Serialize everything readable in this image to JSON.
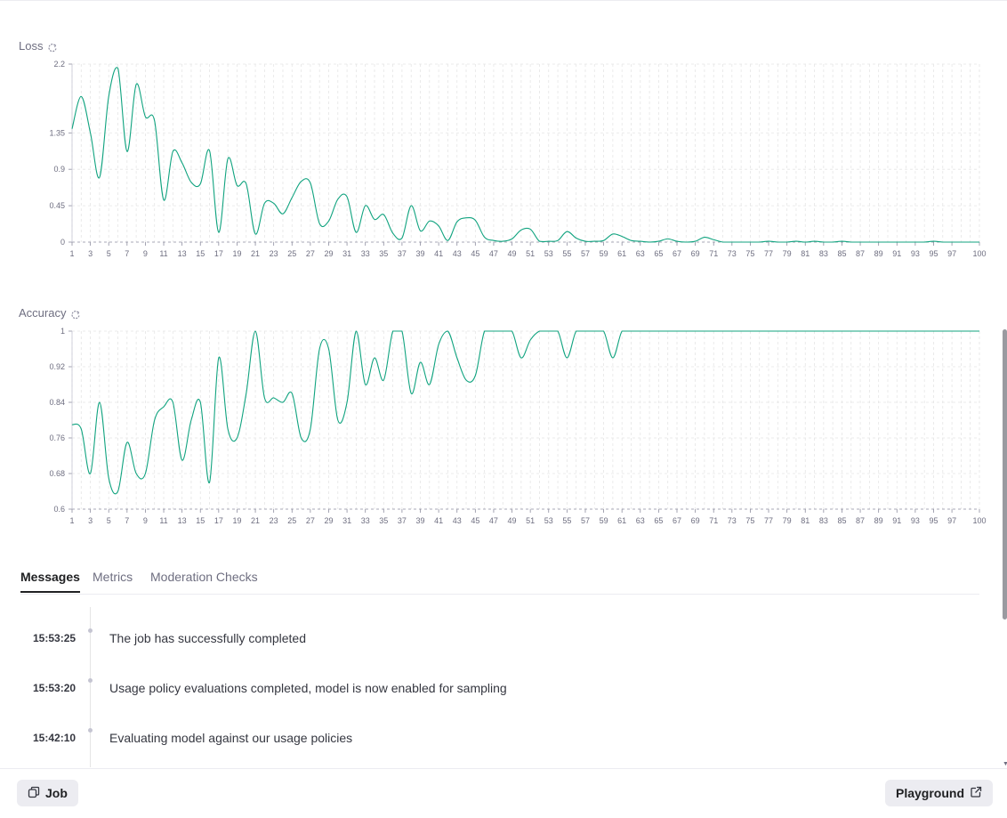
{
  "loss_chart": {
    "title": "Loss",
    "reset_icon": "reset-zoom-icon"
  },
  "accuracy_chart": {
    "title": "Accuracy",
    "reset_icon": "reset-zoom-icon"
  },
  "chart_data": [
    {
      "type": "line",
      "title": "Loss",
      "xlabel": "",
      "ylabel": "",
      "xlim": [
        1,
        100
      ],
      "ylim": [
        0,
        2.2
      ],
      "y_ticks": [
        "0",
        "0.45",
        "0.9",
        "1.35",
        "2.2"
      ],
      "x_ticks": [
        "1",
        "3",
        "5",
        "7",
        "9",
        "11",
        "13",
        "15",
        "17",
        "19",
        "21",
        "23",
        "25",
        "27",
        "29",
        "31",
        "33",
        "35",
        "37",
        "39",
        "41",
        "43",
        "45",
        "47",
        "49",
        "51",
        "53",
        "55",
        "57",
        "59",
        "61",
        "63",
        "65",
        "67",
        "69",
        "71",
        "73",
        "75",
        "77",
        "79",
        "81",
        "83",
        "85",
        "87",
        "89",
        "91",
        "93",
        "95",
        "97",
        "100"
      ],
      "grid": true,
      "color": "#10a37f",
      "series": [
        {
          "x": [
            1,
            2,
            3,
            4,
            5,
            6,
            7,
            8,
            9,
            10,
            11,
            12,
            13,
            14,
            15,
            16,
            17,
            18,
            19,
            20,
            21,
            22,
            23,
            24,
            25,
            26,
            27,
            28,
            29,
            30,
            31,
            32,
            33,
            34,
            35,
            36,
            37,
            38,
            39,
            40,
            41,
            42,
            43,
            44,
            45,
            46,
            47,
            48,
            49,
            50,
            51,
            52,
            53,
            54,
            55,
            56,
            57,
            58,
            59,
            60,
            61,
            62,
            63,
            64,
            65,
            66,
            67,
            68,
            69,
            70,
            71,
            72,
            73,
            74,
            75,
            76,
            77,
            78,
            79,
            80,
            81,
            82,
            83,
            84,
            85,
            86,
            87,
            88,
            89,
            90,
            91,
            92,
            93,
            94,
            95,
            96,
            97,
            98,
            99,
            100
          ],
          "values": [
            1.4,
            1.8,
            1.35,
            0.8,
            1.8,
            2.15,
            1.12,
            1.95,
            1.55,
            1.5,
            0.52,
            1.12,
            0.98,
            0.74,
            0.72,
            1.13,
            0.12,
            1.03,
            0.7,
            0.72,
            0.1,
            0.48,
            0.48,
            0.35,
            0.55,
            0.75,
            0.73,
            0.23,
            0.26,
            0.53,
            0.56,
            0.12,
            0.45,
            0.28,
            0.34,
            0.11,
            0.05,
            0.45,
            0.14,
            0.26,
            0.2,
            0.02,
            0.25,
            0.3,
            0.27,
            0.06,
            0.02,
            0.01,
            0.04,
            0.15,
            0.16,
            0.01,
            0.01,
            0.02,
            0.13,
            0.05,
            0.01,
            0.01,
            0.02,
            0.1,
            0.07,
            0.02,
            0.01,
            0.0,
            0.01,
            0.04,
            0.01,
            0.0,
            0.01,
            0.06,
            0.03,
            0.0,
            0.0,
            0.0,
            0.0,
            0.0,
            0.01,
            0.0,
            0.0,
            0.01,
            0.0,
            0.01,
            0.0,
            0.0,
            0.01,
            0.0,
            0.0,
            0.0,
            0.0,
            0.0,
            0.0,
            0.0,
            0.0,
            0.0,
            0.01,
            0.0,
            0.0,
            0.0,
            0.0,
            0.0
          ]
        }
      ]
    },
    {
      "type": "line",
      "title": "Accuracy",
      "xlabel": "",
      "ylabel": "",
      "xlim": [
        1,
        100
      ],
      "ylim": [
        0.6,
        1
      ],
      "y_ticks": [
        "0.6",
        "0.68",
        "0.76",
        "0.84",
        "0.92",
        "1"
      ],
      "x_ticks": [
        "1",
        "3",
        "5",
        "7",
        "9",
        "11",
        "13",
        "15",
        "17",
        "19",
        "21",
        "23",
        "25",
        "27",
        "29",
        "31",
        "33",
        "35",
        "37",
        "39",
        "41",
        "43",
        "45",
        "47",
        "49",
        "51",
        "53",
        "55",
        "57",
        "59",
        "61",
        "63",
        "65",
        "67",
        "69",
        "71",
        "73",
        "75",
        "77",
        "79",
        "81",
        "83",
        "85",
        "87",
        "89",
        "91",
        "93",
        "95",
        "97",
        "100"
      ],
      "grid": true,
      "color": "#10a37f",
      "series": [
        {
          "x": [
            1,
            2,
            3,
            4,
            5,
            6,
            7,
            8,
            9,
            10,
            11,
            12,
            13,
            14,
            15,
            16,
            17,
            18,
            19,
            20,
            21,
            22,
            23,
            24,
            25,
            26,
            27,
            28,
            29,
            30,
            31,
            32,
            33,
            34,
            35,
            36,
            37,
            38,
            39,
            40,
            41,
            42,
            43,
            44,
            45,
            46,
            47,
            48,
            49,
            50,
            51,
            52,
            53,
            54,
            55,
            56,
            57,
            58,
            59,
            60,
            61,
            62,
            63,
            64,
            65,
            66,
            67,
            68,
            69,
            70,
            71,
            72,
            73,
            74,
            75,
            76,
            77,
            78,
            79,
            80,
            81,
            82,
            83,
            84,
            85,
            86,
            87,
            88,
            89,
            90,
            91,
            92,
            93,
            94,
            95,
            96,
            97,
            98,
            99,
            100
          ],
          "values": [
            0.79,
            0.78,
            0.68,
            0.84,
            0.67,
            0.64,
            0.75,
            0.68,
            0.68,
            0.8,
            0.83,
            0.84,
            0.71,
            0.8,
            0.84,
            0.66,
            0.94,
            0.78,
            0.76,
            0.86,
            1.0,
            0.85,
            0.85,
            0.84,
            0.86,
            0.76,
            0.78,
            0.96,
            0.96,
            0.8,
            0.84,
            1.0,
            0.88,
            0.94,
            0.89,
            1.0,
            1.0,
            0.86,
            0.93,
            0.88,
            0.97,
            1.0,
            0.94,
            0.89,
            0.9,
            1.0,
            1.0,
            1.0,
            1.0,
            0.94,
            0.98,
            1.0,
            1.0,
            1.0,
            0.94,
            1.0,
            1.0,
            1.0,
            1.0,
            0.94,
            1.0,
            1.0,
            1.0,
            1.0,
            1.0,
            1.0,
            1.0,
            1.0,
            1.0,
            1.0,
            1.0,
            1.0,
            1.0,
            1.0,
            1.0,
            1.0,
            1.0,
            1.0,
            1.0,
            1.0,
            1.0,
            1.0,
            1.0,
            1.0,
            1.0,
            1.0,
            1.0,
            1.0,
            1.0,
            1.0,
            1.0,
            1.0,
            1.0,
            1.0,
            1.0,
            1.0,
            1.0,
            1.0,
            1.0,
            1.0
          ]
        }
      ]
    }
  ],
  "tabs": [
    {
      "label": "Messages",
      "active": true
    },
    {
      "label": "Metrics",
      "active": false
    },
    {
      "label": "Moderation Checks",
      "active": false
    }
  ],
  "messages": [
    {
      "time": "15:53:25",
      "text": "The job has successfully completed"
    },
    {
      "time": "15:53:20",
      "text": "Usage policy evaluations completed, model is now enabled for sampling"
    },
    {
      "time": "15:42:10",
      "text": "Evaluating model against our usage policies"
    }
  ],
  "bottom_bar": {
    "job_label": "Job",
    "job_icon": "copy-icon",
    "playground_label": "Playground",
    "playground_icon": "external-link-icon"
  },
  "colors": {
    "accent": "#10a37f",
    "grid": "#e5e5e5",
    "text_muted": "#6e6e80"
  }
}
